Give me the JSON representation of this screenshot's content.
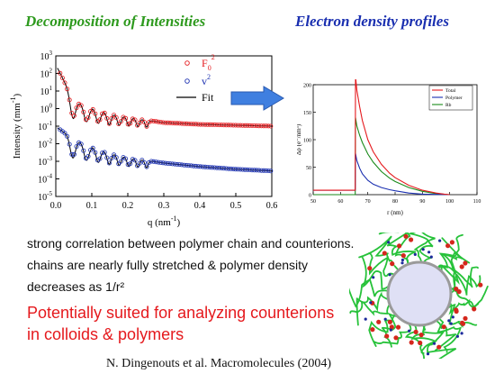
{
  "slide": {
    "title_left": "Decomposition of  Intensities",
    "title_right": "Electron density profiles",
    "body_lines": [
      "strong correlation between polymer chain and counterions.",
      "chains are nearly fully stretched & polymer density",
      "decreases as 1/r²"
    ],
    "highlight_lines": [
      "Potentially suited for analyzing counterions",
      "in colloids & polymers"
    ],
    "citation": "N. Dingenouts et al. Macromolecules (2004)",
    "colors": {
      "title_left": "#2e9a1e",
      "title_right": "#1a2fb0",
      "highlight": "#e5191d",
      "arrow": "#3f7fe0"
    }
  },
  "chart_data": [
    {
      "type": "scatter",
      "xlabel": "q (nm",
      "xlabel_exp": "-1",
      "ylabel": "Intensity (mm",
      "ylabel_exp": "-1",
      "xlim": [
        0.0,
        0.6
      ],
      "x_ticks": [
        "0.0",
        "0.1",
        "0.2",
        "0.3",
        "0.4",
        "0.5",
        "0.6"
      ],
      "y_log": true,
      "ylim_exp": [
        -5,
        3
      ],
      "y_ticks": [
        {
          "base": "10",
          "exp": "3"
        },
        {
          "base": "10",
          "exp": "2"
        },
        {
          "base": "10",
          "exp": "1"
        },
        {
          "base": "10",
          "exp": "0"
        },
        {
          "base": "10",
          "exp": "-1"
        },
        {
          "base": "10",
          "exp": "-2"
        },
        {
          "base": "10",
          "exp": "-3"
        },
        {
          "base": "10",
          "exp": "-4"
        },
        {
          "base": "10",
          "exp": "-5"
        }
      ],
      "legend_position": "top-right",
      "series": [
        {
          "name": "F",
          "sub": "0",
          "sup": "2",
          "marker": "circle",
          "color": "#e5191d",
          "envelope_log10": [
            [
              0.005,
              2.3
            ],
            [
              0.05,
              0.45
            ],
            [
              0.1,
              0.0
            ],
            [
              0.15,
              -0.3
            ],
            [
              0.2,
              -0.5
            ],
            [
              0.3,
              -0.8
            ],
            [
              0.4,
              -0.9
            ],
            [
              0.5,
              -0.95
            ],
            [
              0.6,
              -1.0
            ]
          ],
          "minima_q": [
            0.047,
            0.085,
            0.118,
            0.148,
            0.176,
            0.203,
            0.228,
            0.252
          ]
        },
        {
          "name": "v",
          "sub": "",
          "sup": "2",
          "marker": "circle",
          "color": "#1a2fb0",
          "envelope_log10": [
            [
              0.005,
              -1.1
            ],
            [
              0.05,
              -1.75
            ],
            [
              0.1,
              -2.2
            ],
            [
              0.15,
              -2.55
            ],
            [
              0.2,
              -2.8
            ],
            [
              0.3,
              -3.1
            ],
            [
              0.4,
              -3.3
            ],
            [
              0.5,
              -3.45
            ],
            [
              0.6,
              -3.55
            ]
          ],
          "minima_q": [
            0.047,
            0.085,
            0.118,
            0.148,
            0.176,
            0.203,
            0.228,
            0.252
          ]
        },
        {
          "name": "Fit",
          "line": "solid",
          "color": "#000000"
        }
      ]
    },
    {
      "type": "line",
      "xlabel": "r (nm)",
      "ylabel": "Δρ (e⁻/nm³)",
      "xlim": [
        50,
        110
      ],
      "ylim": [
        0,
        200
      ],
      "x_ticks": [
        "50",
        "60",
        "70",
        "80",
        "90",
        "100",
        "110"
      ],
      "y_ticks": [
        "0",
        "50",
        "100",
        "150",
        "200"
      ],
      "legend_position": "top-right",
      "series": [
        {
          "name": "Total",
          "color": "#e5191d",
          "x": [
            50,
            65.4,
            65.5,
            66,
            67,
            68,
            70,
            72,
            75,
            78,
            80,
            85,
            90,
            95,
            98,
            100
          ],
          "y": [
            8,
            8,
            215,
            190,
            160,
            135,
            100,
            78,
            55,
            39,
            31,
            17,
            8,
            3,
            1,
            0
          ]
        },
        {
          "name": "Polymer",
          "color": "#1a2fb0",
          "x": [
            50,
            65.4,
            65.5,
            66,
            67,
            68,
            70,
            72,
            75,
            78,
            80,
            85,
            90,
            95,
            100
          ],
          "y": [
            8,
            8,
            75,
            62,
            48,
            38,
            26,
            19,
            13,
            9,
            7,
            3,
            1,
            0.5,
            0
          ]
        },
        {
          "name": "Rb",
          "color": "#1a8a1a",
          "x": [
            50,
            65.4,
            65.5,
            66,
            67,
            68,
            70,
            72,
            75,
            78,
            80,
            85,
            90,
            95,
            100
          ],
          "y": [
            0,
            0,
            140,
            125,
            108,
            95,
            74,
            59,
            42,
            30,
            24,
            13,
            6,
            2,
            0
          ]
        }
      ]
    }
  ]
}
